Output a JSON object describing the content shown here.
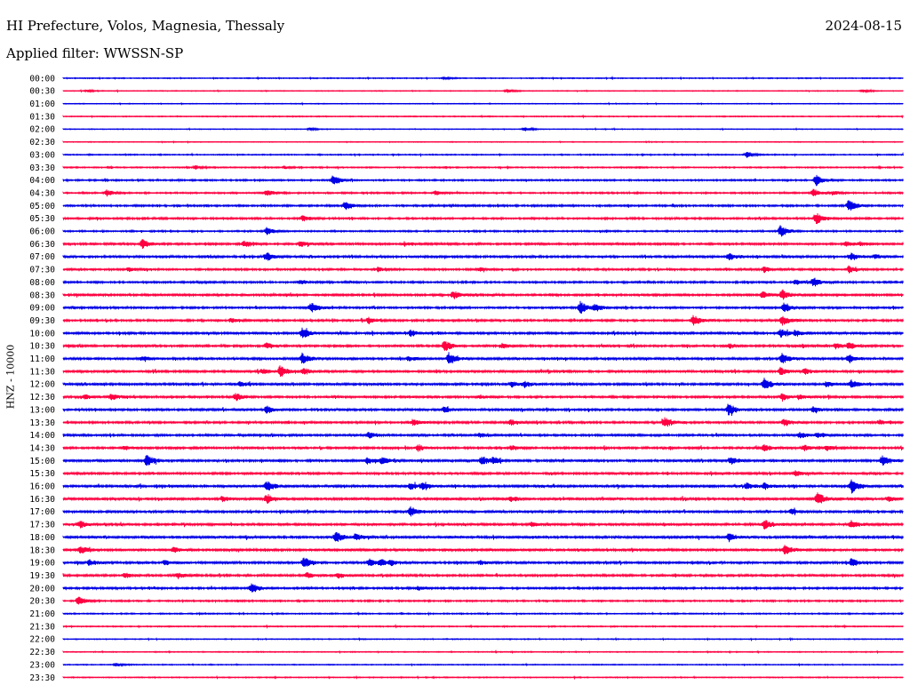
{
  "header": {
    "station": "HI Prefecture, Volos, Magnesia, Thessaly",
    "date": "2024-08-15",
    "filter": "Applied filter: WWSSN-SP"
  },
  "colors": {
    "trace_a": "#0000e6",
    "trace_b": "#ff0040"
  },
  "chart_data": {
    "type": "line",
    "ylabel": "HNZ - 10000",
    "row_labels": [
      "00:00",
      "00:30",
      "01:00",
      "01:30",
      "02:00",
      "02:30",
      "03:00",
      "03:30",
      "04:00",
      "04:30",
      "05:00",
      "05:30",
      "06:00",
      "06:30",
      "07:00",
      "07:30",
      "08:00",
      "08:30",
      "09:00",
      "09:30",
      "10:00",
      "10:30",
      "11:00",
      "11:30",
      "12:00",
      "12:30",
      "13:00",
      "13:30",
      "14:00",
      "14:30",
      "15:00",
      "15:30",
      "16:00",
      "16:30",
      "17:00",
      "17:30",
      "18:00",
      "18:30",
      "19:00",
      "19:30",
      "20:00",
      "20:30",
      "21:00",
      "21:30",
      "22:00",
      "22:30",
      "23:00",
      "23:30"
    ],
    "row_colors": [
      "trace_a",
      "trace_b",
      "trace_a",
      "trace_b",
      "trace_a",
      "trace_b",
      "trace_a",
      "trace_b",
      "trace_a",
      "trace_b",
      "trace_a",
      "trace_b",
      "trace_a",
      "trace_b",
      "trace_a",
      "trace_b",
      "trace_a",
      "trace_b",
      "trace_a",
      "trace_b",
      "trace_a",
      "trace_b",
      "trace_a",
      "trace_b",
      "trace_a",
      "trace_b",
      "trace_a",
      "trace_b",
      "trace_a",
      "trace_b",
      "trace_a",
      "trace_b",
      "trace_a",
      "trace_b",
      "trace_a",
      "trace_b",
      "trace_a",
      "trace_b",
      "trace_a",
      "trace_b",
      "trace_a",
      "trace_b",
      "trace_a",
      "trace_b",
      "trace_a",
      "trace_b",
      "trace_a",
      "trace_b"
    ],
    "noise_level": [
      0.6,
      0.5,
      0.5,
      0.6,
      0.5,
      0.5,
      0.7,
      0.8,
      1.0,
      1.0,
      1.2,
      1.2,
      1.0,
      1.3,
      1.4,
      1.2,
      1.2,
      1.4,
      1.3,
      1.3,
      1.5,
      1.4,
      1.5,
      1.5,
      1.5,
      1.4,
      1.5,
      1.4,
      1.4,
      1.4,
      1.5,
      1.4,
      1.6,
      1.6,
      1.4,
      1.5,
      1.6,
      1.5,
      1.5,
      1.4,
      1.3,
      1.0,
      0.8,
      0.7,
      0.6,
      0.6,
      0.6,
      0.6
    ],
    "events": [
      [
        [
          500,
          1.2
        ]
      ],
      [
        [
          98,
          1.5
        ],
        [
          570,
          2.0
        ],
        [
          970,
          1.5
        ]
      ],
      [],
      [],
      [
        [
          348,
          1.6
        ],
        [
          590,
          2.2
        ]
      ],
      [],
      [
        [
          840,
          4.0
        ]
      ],
      [
        [
          220,
          2.0
        ],
        [
          320,
          1.5
        ]
      ],
      [
        [
          375,
          6.0
        ],
        [
          918,
          6.0
        ]
      ],
      [
        [
          120,
          3.5
        ],
        [
          300,
          3.5
        ],
        [
          490,
          2.5
        ],
        [
          915,
          4.5
        ],
        [
          938,
          2.0
        ]
      ],
      [
        [
          388,
          5.0
        ],
        [
          955,
          7.0
        ]
      ],
      [
        [
          340,
          3.0
        ],
        [
          918,
          7.0
        ]
      ],
      [
        [
          300,
          4.0
        ],
        [
          878,
          7.0
        ]
      ],
      [
        [
          160,
          5.0
        ],
        [
          275,
          3.5
        ],
        [
          338,
          3.5
        ],
        [
          455,
          2.0
        ],
        [
          952,
          2.5
        ],
        [
          968,
          2.0
        ]
      ],
      [
        [
          300,
          5.0
        ],
        [
          820,
          4.0
        ],
        [
          958,
          4.0
        ],
        [
          985,
          2.5
        ]
      ],
      [
        [
          145,
          2.0
        ],
        [
          425,
          2.0
        ],
        [
          540,
          2.0
        ],
        [
          860,
          3.5
        ],
        [
          955,
          3.5
        ]
      ],
      [
        [
          338,
          2.5
        ],
        [
          895,
          3.0
        ],
        [
          915,
          5.0
        ]
      ],
      [
        [
          510,
          4.5
        ],
        [
          858,
          3.5
        ],
        [
          880,
          5.0
        ]
      ],
      [
        [
          350,
          5.5
        ],
        [
          653,
          7.0
        ],
        [
          670,
          4.0
        ],
        [
          882,
          5.0
        ]
      ],
      [
        [
          260,
          2.5
        ],
        [
          415,
          3.5
        ],
        [
          780,
          6.0
        ],
        [
          880,
          5.5
        ]
      ],
      [
        [
          340,
          6.0
        ],
        [
          462,
          3.5
        ],
        [
          878,
          4.5
        ],
        [
          895,
          3.0
        ]
      ],
      [
        [
          300,
          3.0
        ],
        [
          500,
          6.5
        ],
        [
          565,
          2.5
        ],
        [
          820,
          2.5
        ],
        [
          940,
          3.0
        ],
        [
          955,
          3.0
        ]
      ],
      [
        [
          160,
          2.5
        ],
        [
          340,
          6.0
        ],
        [
          460,
          2.5
        ],
        [
          505,
          6.5
        ],
        [
          880,
          5.0
        ],
        [
          955,
          4.5
        ]
      ],
      [
        [
          295,
          3.0
        ],
        [
          315,
          5.5
        ],
        [
          342,
          3.0
        ],
        [
          878,
          4.0
        ],
        [
          905,
          3.0
        ]
      ],
      [
        [
          270,
          3.0
        ],
        [
          575,
          3.0
        ],
        [
          590,
          3.0
        ],
        [
          860,
          6.0
        ],
        [
          930,
          3.0
        ],
        [
          958,
          4.5
        ]
      ],
      [
        [
          95,
          2.5
        ],
        [
          125,
          3.5
        ],
        [
          265,
          4.5
        ],
        [
          540,
          2.0
        ],
        [
          880,
          4.0
        ],
        [
          900,
          2.5
        ]
      ],
      [
        [
          300,
          4.5
        ],
        [
          500,
          3.0
        ],
        [
          820,
          7.0
        ],
        [
          915,
          3.0
        ]
      ],
      [
        [
          465,
          4.0
        ],
        [
          575,
          3.0
        ],
        [
          748,
          6.0
        ],
        [
          882,
          4.0
        ],
        [
          990,
          2.5
        ]
      ],
      [
        [
          415,
          4.0
        ],
        [
          540,
          2.5
        ],
        [
          900,
          3.5
        ],
        [
          920,
          2.5
        ]
      ],
      [
        [
          140,
          2.0
        ],
        [
          470,
          3.5
        ],
        [
          575,
          3.0
        ],
        [
          860,
          4.0
        ],
        [
          905,
          3.0
        ],
        [
          930,
          3.0
        ]
      ],
      [
        [
          165,
          7.0
        ],
        [
          413,
          3.5
        ],
        [
          430,
          4.0
        ],
        [
          542,
          5.0
        ],
        [
          555,
          3.0
        ],
        [
          822,
          3.5
        ],
        [
          993,
          5.5
        ]
      ],
      [
        [
          895,
          3.0
        ]
      ],
      [
        [
          300,
          6.0
        ],
        [
          462,
          3.5
        ],
        [
          475,
          3.0
        ],
        [
          840,
          3.5
        ],
        [
          860,
          3.0
        ],
        [
          958,
          7.0
        ]
      ],
      [
        [
          300,
          5.0
        ],
        [
          250,
          3.0
        ],
        [
          575,
          3.0
        ],
        [
          920,
          6.5
        ],
        [
          1000,
          3.0
        ]
      ],
      [
        [
          462,
          5.5
        ],
        [
          890,
          3.0
        ]
      ],
      [
        [
          90,
          4.0
        ],
        [
          598,
          2.5
        ],
        [
          860,
          5.5
        ],
        [
          958,
          4.5
        ]
      ],
      [
        [
          378,
          6.5
        ],
        [
          400,
          3.0
        ],
        [
          820,
          4.0
        ]
      ],
      [
        [
          90,
          4.5
        ],
        [
          195,
          3.0
        ],
        [
          883,
          5.5
        ]
      ],
      [
        [
          100,
          3.5
        ],
        [
          185,
          2.5
        ],
        [
          342,
          6.5
        ],
        [
          415,
          4.0
        ],
        [
          428,
          3.5
        ],
        [
          440,
          2.5
        ],
        [
          540,
          2.0
        ],
        [
          958,
          4.5
        ]
      ],
      [
        [
          140,
          3.0
        ],
        [
          200,
          3.0
        ],
        [
          345,
          3.0
        ],
        [
          380,
          3.0
        ]
      ],
      [
        [
          283,
          5.5
        ],
        [
          470,
          2.5
        ]
      ],
      [
        [
          88,
          5.0
        ]
      ],
      [],
      [],
      [],
      [],
      [
        [
          130,
          2.0
        ]
      ],
      []
    ]
  }
}
